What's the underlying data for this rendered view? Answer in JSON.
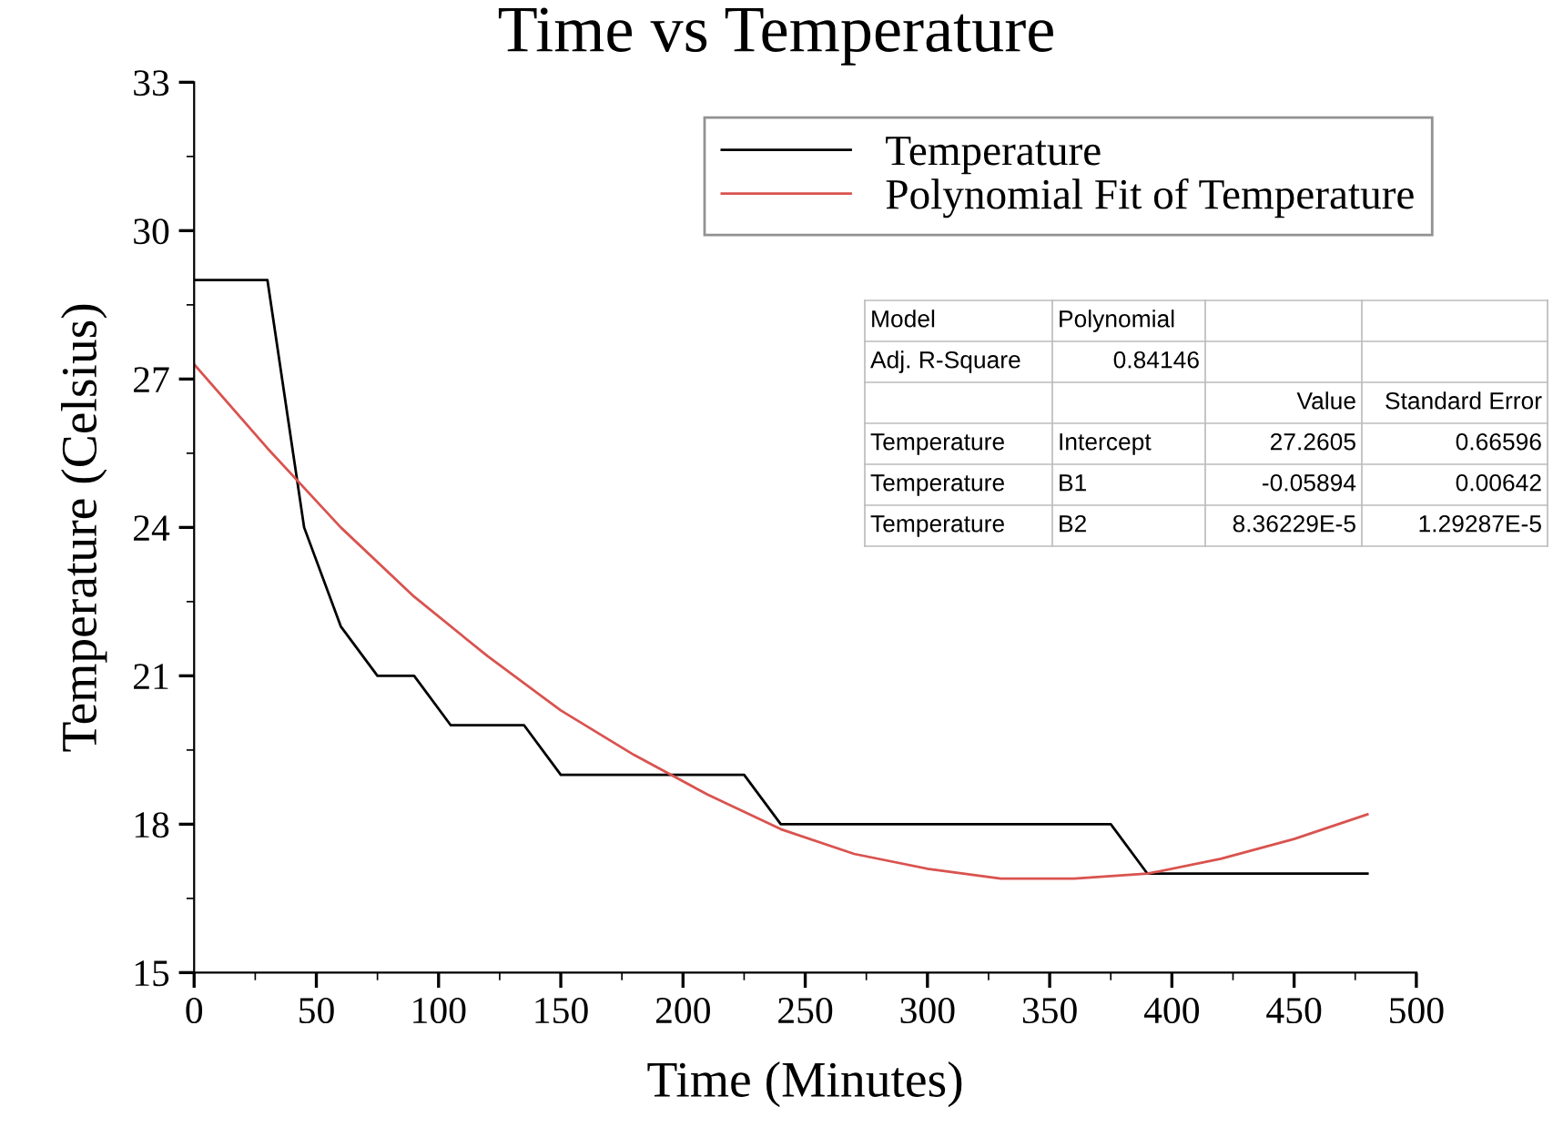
{
  "chart_data": {
    "type": "line",
    "title": "Time vs Temperature",
    "xlabel": "Time (Minutes)",
    "ylabel": "Temperature (Celsius)",
    "xlim": [
      0,
      500
    ],
    "xticks": [
      0,
      50,
      100,
      150,
      200,
      250,
      300,
      350,
      400,
      450,
      500
    ],
    "ylim": [
      15,
      33
    ],
    "yticks": [
      15,
      18,
      21,
      24,
      27,
      30,
      33
    ],
    "grid": false,
    "legend": "top right",
    "marker": "none",
    "line_style": "solid",
    "series": [
      {
        "name": "Temperature",
        "color": "#000000",
        "x": [
          0,
          30,
          45,
          60,
          75,
          90,
          105,
          135,
          150,
          225,
          240,
          375,
          390,
          480
        ],
        "values": [
          29,
          29,
          24,
          22,
          21,
          21,
          20,
          20,
          19,
          19,
          18,
          18,
          17,
          17
        ]
      },
      {
        "name": "Polynomial Fit of Temperature",
        "color": "#d9534f",
        "x": [
          0,
          30,
          60,
          90,
          120,
          150,
          180,
          210,
          240,
          270,
          300,
          330,
          360,
          390,
          420,
          450,
          480
        ],
        "values": [
          27.3,
          25.6,
          24.0,
          22.6,
          21.4,
          20.3,
          19.4,
          18.6,
          17.9,
          17.4,
          17.1,
          16.9,
          16.9,
          17.0,
          17.3,
          17.7,
          18.2
        ]
      }
    ],
    "annotations": [
      "Model",
      "Polynomial",
      "Adj. R-Square",
      "0.84146",
      "Value",
      "Standard Error",
      "Temperature",
      "Intercept",
      "27.2605",
      "0.66596",
      "Temperature",
      "B1",
      "-0.05894",
      "0.00642",
      "Temperature",
      "B2",
      "8.36229E-5",
      "1.29287E-5"
    ]
  }
}
